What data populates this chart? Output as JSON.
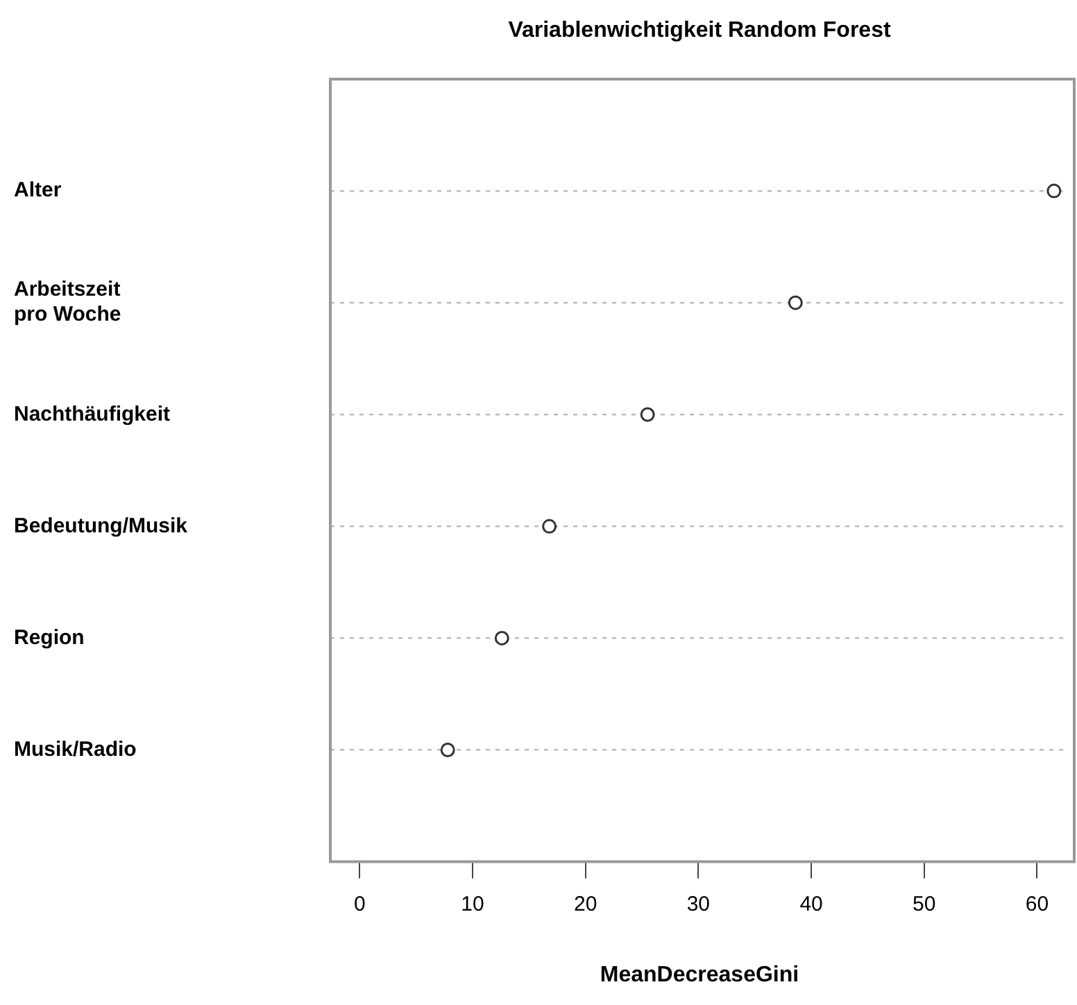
{
  "chart_data": {
    "type": "scatter",
    "title": "Variablenwichtigkeit Random Forest",
    "xlabel": "MeanDecreaseGini",
    "categories": [
      "Alter",
      "Arbeitszeit\npro Woche",
      "Nachthäufigkeit",
      "Bedeutung/Musik",
      "Region",
      "Musik/Radio"
    ],
    "orientation": "horizontal",
    "series": [
      {
        "color": "#333333",
        "values": [
          61.5,
          38.6,
          25.5,
          16.8,
          12.6,
          7.8
        ]
      }
    ],
    "xlim": [
      -2.6,
      62.8
    ],
    "xticks": [
      0,
      10,
      20,
      30,
      40,
      50,
      60
    ],
    "grid": "y",
    "marker": "circle",
    "legend": false
  }
}
